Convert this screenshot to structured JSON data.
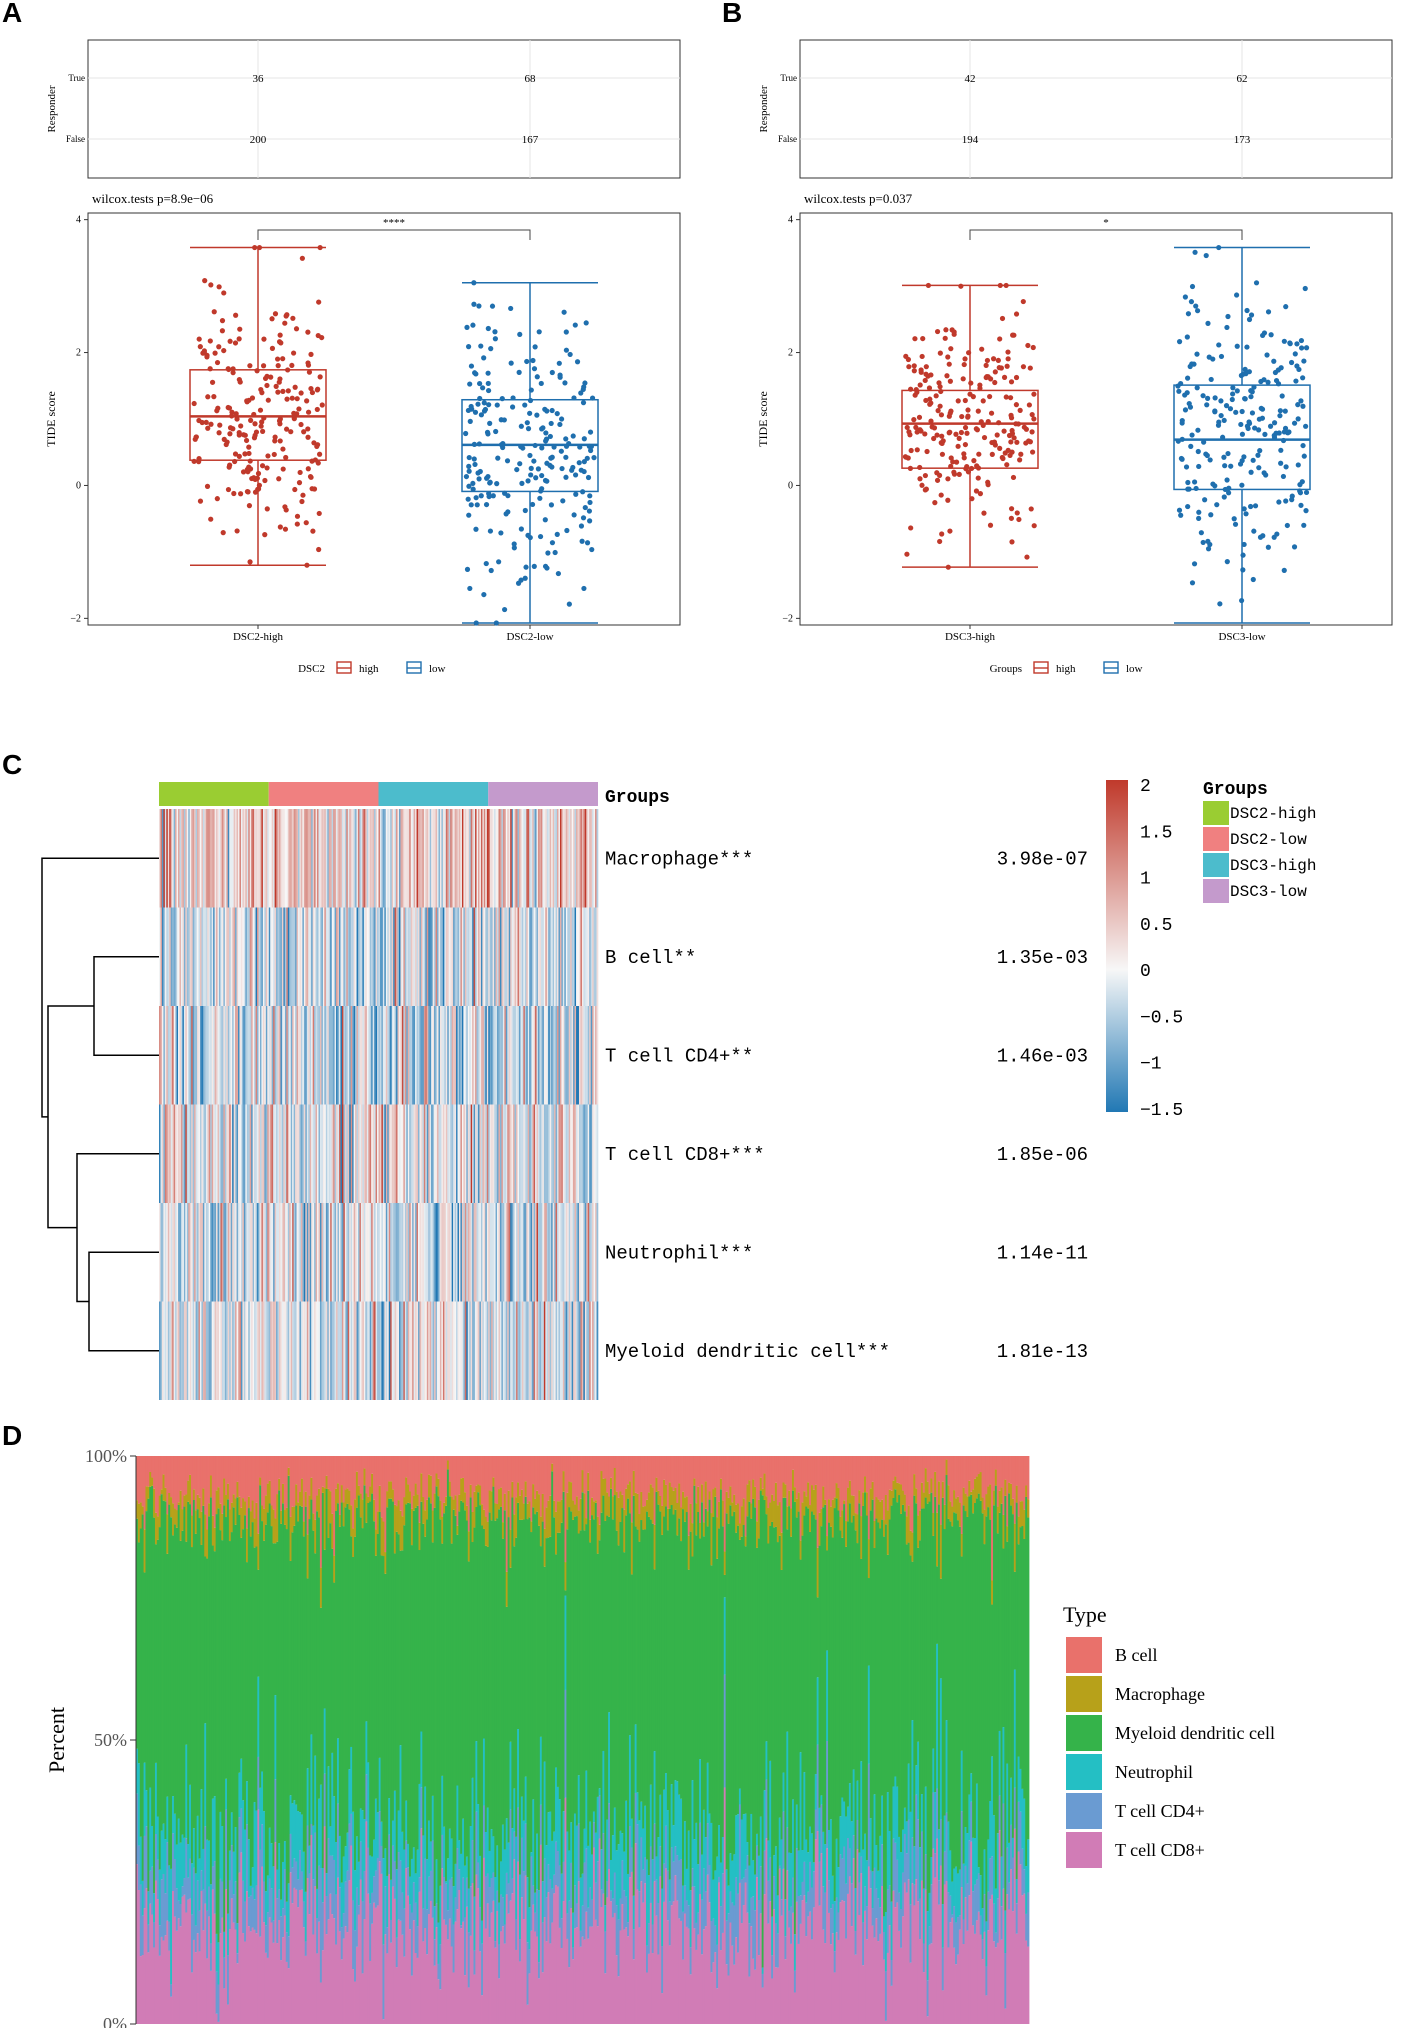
{
  "colors": {
    "high": "#C0392B",
    "low": "#1F6FAE",
    "heat_hi": "#C0392B",
    "heat_mid": "#F7F7F7",
    "heat_lo": "#2178B4",
    "grp_dsc2_high": "#9ACD32",
    "grp_dsc2_low": "#F08080",
    "grp_dsc3_high": "#4CBCCC",
    "grp_dsc3_low": "#C49ACC",
    "bcell": "#E9716B",
    "macrophage": "#B7A11A",
    "myeloid": "#35B34A",
    "neutrophil": "#24BFC4",
    "tcd4": "#6A9BD2",
    "tcd8": "#D17CB6"
  },
  "panels": {
    "a": "A",
    "b": "B",
    "c": "C",
    "d": "D"
  },
  "chart_data": [
    {
      "id": "A",
      "type": "boxplot",
      "responder_table": {
        "ylabel": "Responder",
        "rows": [
          "True",
          "False"
        ],
        "columns": [
          "DSC2-high",
          "DSC2-low"
        ],
        "counts": [
          [
            36,
            68
          ],
          [
            200,
            167
          ]
        ]
      },
      "test_label": "wilcox.tests p=8.9e−06",
      "significance": "****",
      "ylabel": "TIDE score",
      "yticks": [
        "4",
        "2",
        "0",
        "−2"
      ],
      "ylim": [
        -2.1,
        4.1
      ],
      "categories": [
        "DSC2-high",
        "DSC2-low"
      ],
      "boxes": [
        {
          "group": "high",
          "min": -1.2,
          "q1": 0.38,
          "median": 1.04,
          "q3": 1.74,
          "max": 3.58,
          "n": 236
        },
        {
          "group": "low",
          "min": -2.07,
          "q1": -0.09,
          "median": 0.61,
          "q3": 1.29,
          "max": 3.05,
          "n": 235
        }
      ],
      "legend_title": "DSC2",
      "legend": [
        "high",
        "low"
      ]
    },
    {
      "id": "B",
      "type": "boxplot",
      "responder_table": {
        "ylabel": "Responder",
        "rows": [
          "True",
          "False"
        ],
        "columns": [
          "DSC3-high",
          "DSC3-low"
        ],
        "counts": [
          [
            42,
            62
          ],
          [
            194,
            173
          ]
        ]
      },
      "test_label": "wilcox.tests p=0.037",
      "significance": "*",
      "ylabel": "TIDE score",
      "yticks": [
        "4",
        "2",
        "0",
        "−2"
      ],
      "ylim": [
        -2.1,
        4.1
      ],
      "categories": [
        "DSC3-high",
        "DSC3-low"
      ],
      "boxes": [
        {
          "group": "high",
          "min": -1.23,
          "q1": 0.26,
          "median": 0.93,
          "q3": 1.43,
          "max": 3.01,
          "n": 236
        },
        {
          "group": "low",
          "min": -2.07,
          "q1": -0.06,
          "median": 0.69,
          "q3": 1.51,
          "max": 3.58,
          "n": 235
        }
      ],
      "legend_title": "Groups",
      "legend": [
        "high",
        "low"
      ]
    },
    {
      "id": "C",
      "type": "heatmap",
      "annotation_title": "Groups",
      "groups": [
        "DSC2-high",
        "DSC2-low",
        "DSC3-high",
        "DSC3-low"
      ],
      "rows": [
        {
          "label": "Macrophage***",
          "p": "3.98e-07"
        },
        {
          "label": "B cell**",
          "p": "1.35e-03"
        },
        {
          "label": "T cell CD4+**",
          "p": "1.46e-03"
        },
        {
          "label": "T cell CD8+***",
          "p": "1.85e-06"
        },
        {
          "label": "Neutrophil***",
          "p": "1.14e-11"
        },
        {
          "label": "Myeloid dendritic cell***",
          "p": "1.81e-13"
        }
      ],
      "color_scale": {
        "range": [
          -1.5,
          2
        ],
        "ticks": [
          "2",
          "1.5",
          "1",
          "0.5",
          "0",
          "−0.5",
          "−1",
          "−1.5"
        ]
      },
      "legend_title": "Groups"
    },
    {
      "id": "D",
      "type": "stacked_bar",
      "ylabel": "Percent",
      "yticks": [
        "100%",
        "50%",
        "0%"
      ],
      "legend_title": "Type",
      "series_order_bottom_to_top": [
        "T cell CD8+",
        "T cell CD4+",
        "Neutrophil",
        "Myeloid dendritic cell",
        "Macrophage",
        "B cell"
      ],
      "legend": [
        "B cell",
        "Macrophage",
        "Myeloid dendritic cell",
        "Neutrophil",
        "T cell CD4+",
        "T cell CD8+"
      ],
      "mean_fractions": {
        "T cell CD8+": 0.18,
        "T cell CD4+": 0.07,
        "Neutrophil": 0.09,
        "Myeloid dendritic cell": 0.55,
        "Macrophage": 0.04,
        "B cell": 0.07
      },
      "n_samples": 471
    }
  ]
}
